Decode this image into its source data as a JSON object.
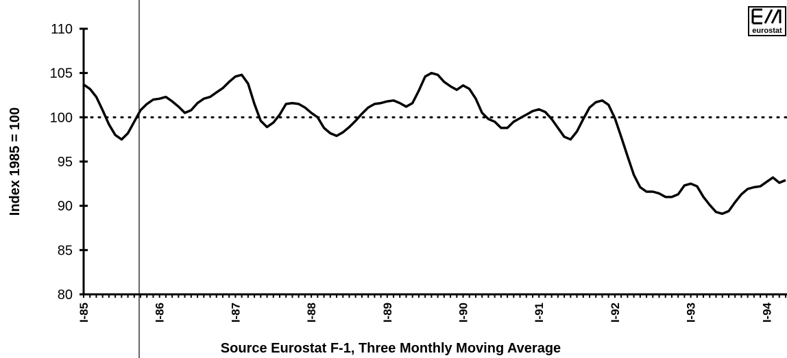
{
  "chart_data": {
    "type": "line",
    "y_label": "Index 1985 = 100",
    "x_label": "Source Eurostat F-1, Three Monthly Moving Average",
    "logo_text": "eurostat",
    "categories": [
      "I-85",
      null,
      null,
      null,
      null,
      null,
      null,
      null,
      null,
      null,
      null,
      null,
      "I-86",
      null,
      null,
      null,
      null,
      null,
      null,
      null,
      null,
      null,
      null,
      null,
      "I-87",
      null,
      null,
      null,
      null,
      null,
      null,
      null,
      null,
      null,
      null,
      null,
      "I-88",
      null,
      null,
      null,
      null,
      null,
      null,
      null,
      null,
      null,
      null,
      null,
      "I-89",
      null,
      null,
      null,
      null,
      null,
      null,
      null,
      null,
      null,
      null,
      null,
      "I-90",
      null,
      null,
      null,
      null,
      null,
      null,
      null,
      null,
      null,
      null,
      null,
      "I-91",
      null,
      null,
      null,
      null,
      null,
      null,
      null,
      null,
      null,
      null,
      null,
      "I-92",
      null,
      null,
      null,
      null,
      null,
      null,
      null,
      null,
      null,
      null,
      null,
      "I-93",
      null,
      null,
      null,
      null,
      null,
      null,
      null,
      null,
      null,
      null,
      null,
      "I-94",
      null,
      null,
      null
    ],
    "values": [
      103.7,
      103.2,
      102.3,
      100.8,
      99.2,
      98,
      97.5,
      98.2,
      99.5,
      100.8,
      101.5,
      102,
      102.1,
      102.3,
      101.8,
      101.2,
      100.5,
      100.8,
      101.6,
      102.1,
      102.3,
      102.8,
      103.3,
      104,
      104.6,
      104.8,
      103.8,
      101.5,
      99.6,
      98.9,
      99.4,
      100.3,
      101.5,
      101.6,
      101.5,
      101.1,
      100.5,
      100,
      98.8,
      98.2,
      97.9,
      98.3,
      98.9,
      99.6,
      100.4,
      101.1,
      101.5,
      101.6,
      101.8,
      101.9,
      101.6,
      101.2,
      101.6,
      103,
      104.6,
      105,
      104.8,
      104,
      103.5,
      103.1,
      103.6,
      103.2,
      102.1,
      100.5,
      99.8,
      99.5,
      98.8,
      98.8,
      99.5,
      99.9,
      100.3,
      100.7,
      100.9,
      100.6,
      99.8,
      98.8,
      97.8,
      97.5,
      98.4,
      99.8,
      101.1,
      101.7,
      101.9,
      101.4,
      99.9,
      97.8,
      95.6,
      93.5,
      92.1,
      91.6,
      91.6,
      91.4,
      91,
      91,
      91.3,
      92.3,
      92.5,
      92.2,
      91,
      90.1,
      89.3,
      89.1,
      89.4,
      90.4,
      91.3,
      91.9,
      92.1,
      92.2,
      92.7,
      93.2,
      92.6,
      92.9
    ],
    "color": "#000000",
    "ylim": [
      80,
      110
    ],
    "yticks": [
      80,
      85,
      90,
      95,
      100,
      105,
      110
    ],
    "reference_line": 100
  }
}
